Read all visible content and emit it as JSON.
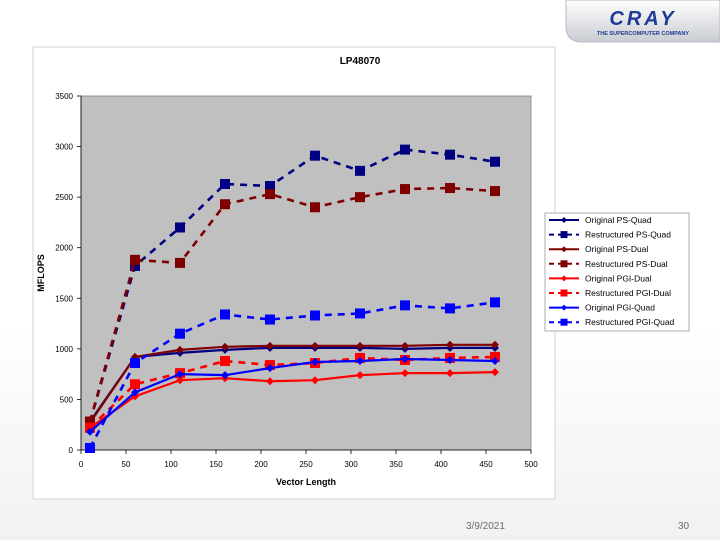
{
  "branding": {
    "logo_text": "CRAY",
    "logo_tagline": "THE SUPERCOMPUTER COMPANY",
    "logo_color": "#1f3a93"
  },
  "footer": {
    "date": "3/9/2021",
    "page_number": "30"
  },
  "chart_data": {
    "type": "line",
    "title": "LP48070",
    "xlabel": "Vector Length",
    "ylabel": "MFLOPS",
    "xlim": [
      0,
      500
    ],
    "ylim": [
      0,
      3500
    ],
    "x_ticks": [
      0,
      50,
      100,
      150,
      200,
      250,
      300,
      350,
      400,
      450,
      500
    ],
    "y_ticks": [
      0,
      500,
      1000,
      1500,
      2000,
      2500,
      3000,
      3500
    ],
    "grid": false,
    "plot_background": "#c0c0c0",
    "legend_position": "right",
    "x": [
      10,
      60,
      110,
      160,
      210,
      260,
      310,
      360,
      410,
      460
    ],
    "series": [
      {
        "name": "Original PS-Quad",
        "color": "#000080",
        "dash": false,
        "marker": "diamond",
        "values": [
          280,
          920,
          960,
          990,
          1010,
          1010,
          1010,
          1000,
          1010,
          1010
        ]
      },
      {
        "name": "Restructured PS-Quad",
        "color": "#000080",
        "dash": true,
        "marker": "square",
        "values": [
          280,
          1820,
          2200,
          2630,
          2610,
          2910,
          2760,
          2970,
          2920,
          2850
        ]
      },
      {
        "name": "Original PS-Dual",
        "color": "#800000",
        "dash": false,
        "marker": "diamond",
        "values": [
          270,
          920,
          990,
          1020,
          1030,
          1030,
          1030,
          1030,
          1040,
          1040
        ]
      },
      {
        "name": "Restructured PS-Dual",
        "color": "#800000",
        "dash": true,
        "marker": "square",
        "values": [
          280,
          1880,
          1850,
          2430,
          2530,
          2400,
          2500,
          2580,
          2590,
          2560
        ]
      },
      {
        "name": "Original PGI-Dual",
        "color": "#ff0000",
        "dash": false,
        "marker": "diamond",
        "values": [
          220,
          530,
          690,
          710,
          680,
          690,
          740,
          760,
          760,
          770
        ]
      },
      {
        "name": "Restructured PGI-Dual",
        "color": "#ff0000",
        "dash": true,
        "marker": "square",
        "values": [
          220,
          650,
          760,
          880,
          840,
          860,
          910,
          890,
          910,
          920
        ]
      },
      {
        "name": "Original PGI-Quad",
        "color": "#0000ff",
        "dash": false,
        "marker": "diamond",
        "values": [
          180,
          570,
          750,
          740,
          810,
          870,
          880,
          900,
          890,
          880
        ]
      },
      {
        "name": "Restructured PGI-Quad",
        "color": "#0000ff",
        "dash": true,
        "marker": "square",
        "values": [
          20,
          860,
          1150,
          1340,
          1290,
          1330,
          1350,
          1430,
          1400,
          1460
        ]
      }
    ]
  }
}
